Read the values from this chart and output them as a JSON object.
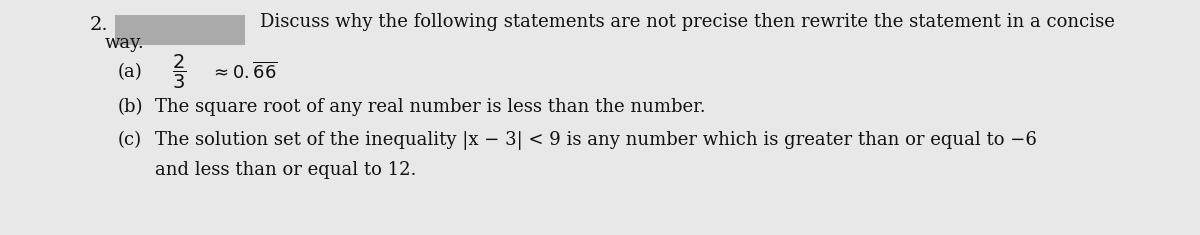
{
  "bg_color": "#e8e8e8",
  "number_label": "2.",
  "gray_box_color": "#aaaaaa",
  "line1_text": "Discuss why the following statements are not precise then rewrite the statement in a concise",
  "line2_text": "way.",
  "item_a_label": "(a)",
  "item_a_frac_num": "2",
  "item_a_frac_den": "3",
  "item_b_label": "(b)",
  "item_b_text": "The square root of any real number is less than the number.",
  "item_c_label": "(c)",
  "item_c_line1": "The solution set of the inequality |x − 3| < 9 is any number which is greater than or equal to −6",
  "item_c_line2": "and less than or equal to 12.",
  "main_fontsize": 13.0,
  "text_color": "#111111",
  "font_family": "serif"
}
